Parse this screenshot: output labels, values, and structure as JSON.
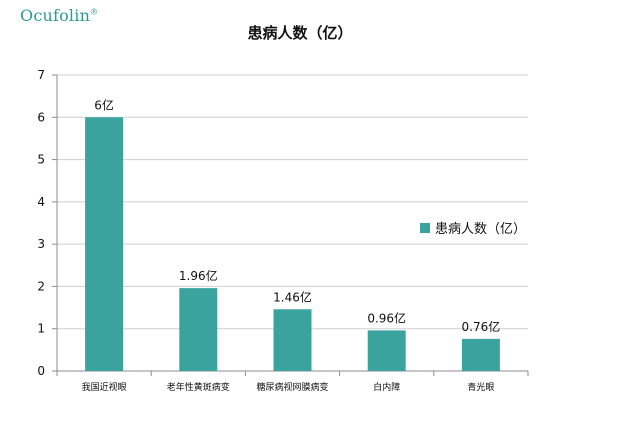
{
  "brand": {
    "logo_text": "Ocufolin",
    "registered_mark": "®"
  },
  "chart_data": {
    "type": "bar",
    "title": "患病人数（亿）",
    "categories": [
      "我国近视眼",
      "老年性黄斑病变",
      "糖尿病视网膜病变",
      "白内障",
      "青光眼"
    ],
    "series": [
      {
        "name": "患病人数（亿）",
        "values": [
          6,
          1.96,
          1.46,
          0.96,
          0.76
        ],
        "data_labels": [
          "6亿",
          "1.96亿",
          "1.46亿",
          "0.96亿",
          "0.76亿"
        ],
        "color": "#3aa39d"
      }
    ],
    "ylim": [
      0,
      7
    ],
    "yticks": [
      0,
      1,
      2,
      3,
      4,
      5,
      6,
      7
    ],
    "grid": true,
    "legend_position": "right"
  }
}
